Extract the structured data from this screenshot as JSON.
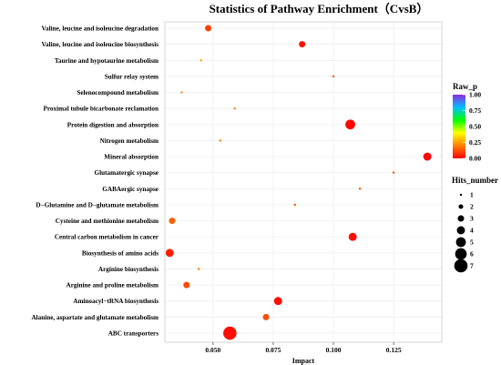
{
  "chart_data": {
    "type": "scatter",
    "title": "Statistics of Pathway Enrichment（CvsB）",
    "xlabel": "Impact",
    "ylabel": "",
    "xlim": [
      0.03,
      0.145
    ],
    "xticks": [
      "0.050",
      "0.075",
      "0.100",
      "0.125"
    ],
    "xtick_values": [
      0.05,
      0.075,
      0.1,
      0.125
    ],
    "grid": true,
    "categories": [
      "ABC transporters",
      "Alanine, aspartate and glutamate metabolism",
      "Aminoacyl−tRNA biosynthesis",
      "Arginine and proline metabolism",
      "Arginine biosynthesis",
      "Biosynthesis of amino acids",
      "Central carbon metabolism in cancer",
      "Cysteine and methionine metabolism",
      "D−Glutamine and D−glutamate metabolism",
      "GABAergic synapse",
      "Glutamatergic synapse",
      "Mineral absorption",
      "Nitrogen metabolism",
      "Protein digestion and absorption",
      "Proximal tubule bicarbonate reclamation",
      "Selenocompound metabolism",
      "Sulfur relay system",
      "Taurine and hypotaurine metabolism",
      "Valine, leucine and isoleucine biosynthesis",
      "Valine, leucine and isoleucine degradation"
    ],
    "points": [
      {
        "pathway": "ABC transporters",
        "impact": 0.057,
        "hits": 7,
        "raw_p": 0.02
      },
      {
        "pathway": "Alanine, aspartate and glutamate metabolism",
        "impact": 0.072,
        "hits": 3,
        "raw_p": 0.12
      },
      {
        "pathway": "Aminoacyl−tRNA biosynthesis",
        "impact": 0.077,
        "hits": 4,
        "raw_p": 0.02
      },
      {
        "pathway": "Arginine and proline metabolism",
        "impact": 0.039,
        "hits": 3,
        "raw_p": 0.12
      },
      {
        "pathway": "Arginine biosynthesis",
        "impact": 0.044,
        "hits": 1,
        "raw_p": 0.2
      },
      {
        "pathway": "Biosynthesis of amino acids",
        "impact": 0.032,
        "hits": 4,
        "raw_p": 0.05
      },
      {
        "pathway": "Central carbon metabolism in cancer",
        "impact": 0.108,
        "hits": 4,
        "raw_p": 0.02
      },
      {
        "pathway": "Cysteine and methionine metabolism",
        "impact": 0.033,
        "hits": 3,
        "raw_p": 0.15
      },
      {
        "pathway": "D−Glutamine and D−glutamate metabolism",
        "impact": 0.084,
        "hits": 1,
        "raw_p": 0.12
      },
      {
        "pathway": "GABAergic synapse",
        "impact": 0.111,
        "hits": 1,
        "raw_p": 0.12
      },
      {
        "pathway": "Glutamatergic synapse",
        "impact": 0.125,
        "hits": 1,
        "raw_p": 0.12
      },
      {
        "pathway": "Mineral absorption",
        "impact": 0.139,
        "hits": 4,
        "raw_p": 0.01
      },
      {
        "pathway": "Nitrogen metabolism",
        "impact": 0.053,
        "hits": 1,
        "raw_p": 0.18
      },
      {
        "pathway": "Protein digestion and absorption",
        "impact": 0.107,
        "hits": 5,
        "raw_p": 0.01
      },
      {
        "pathway": "Proximal tubule bicarbonate reclamation",
        "impact": 0.059,
        "hits": 1,
        "raw_p": 0.2
      },
      {
        "pathway": "Selenocompound metabolism",
        "impact": 0.037,
        "hits": 1,
        "raw_p": 0.22
      },
      {
        "pathway": "Sulfur relay system",
        "impact": 0.1,
        "hits": 1,
        "raw_p": 0.12
      },
      {
        "pathway": "Taurine and hypotaurine metabolism",
        "impact": 0.045,
        "hits": 1,
        "raw_p": 0.25
      },
      {
        "pathway": "Valine, leucine and isoleucine biosynthesis",
        "impact": 0.087,
        "hits": 3,
        "raw_p": 0.03
      },
      {
        "pathway": "Valine, leucine and isoleucine degradation",
        "impact": 0.048,
        "hits": 3,
        "raw_p": 0.1
      }
    ],
    "color_legend": {
      "title": "Raw_p",
      "ticks": [
        "0.00",
        "0.25",
        "0.50",
        "0.75",
        "1.00"
      ],
      "tick_values": [
        0,
        0.25,
        0.5,
        0.75,
        1.0
      ],
      "colors": [
        "#ff0000",
        "#ff7f00",
        "#ffff00",
        "#00ff00",
        "#00c0ff",
        "#8a2be2"
      ]
    },
    "size_legend": {
      "title": "Hits_number",
      "values": [
        "1",
        "2",
        "3",
        "4",
        "5",
        "6",
        "7"
      ]
    },
    "legend_position": "right"
  }
}
